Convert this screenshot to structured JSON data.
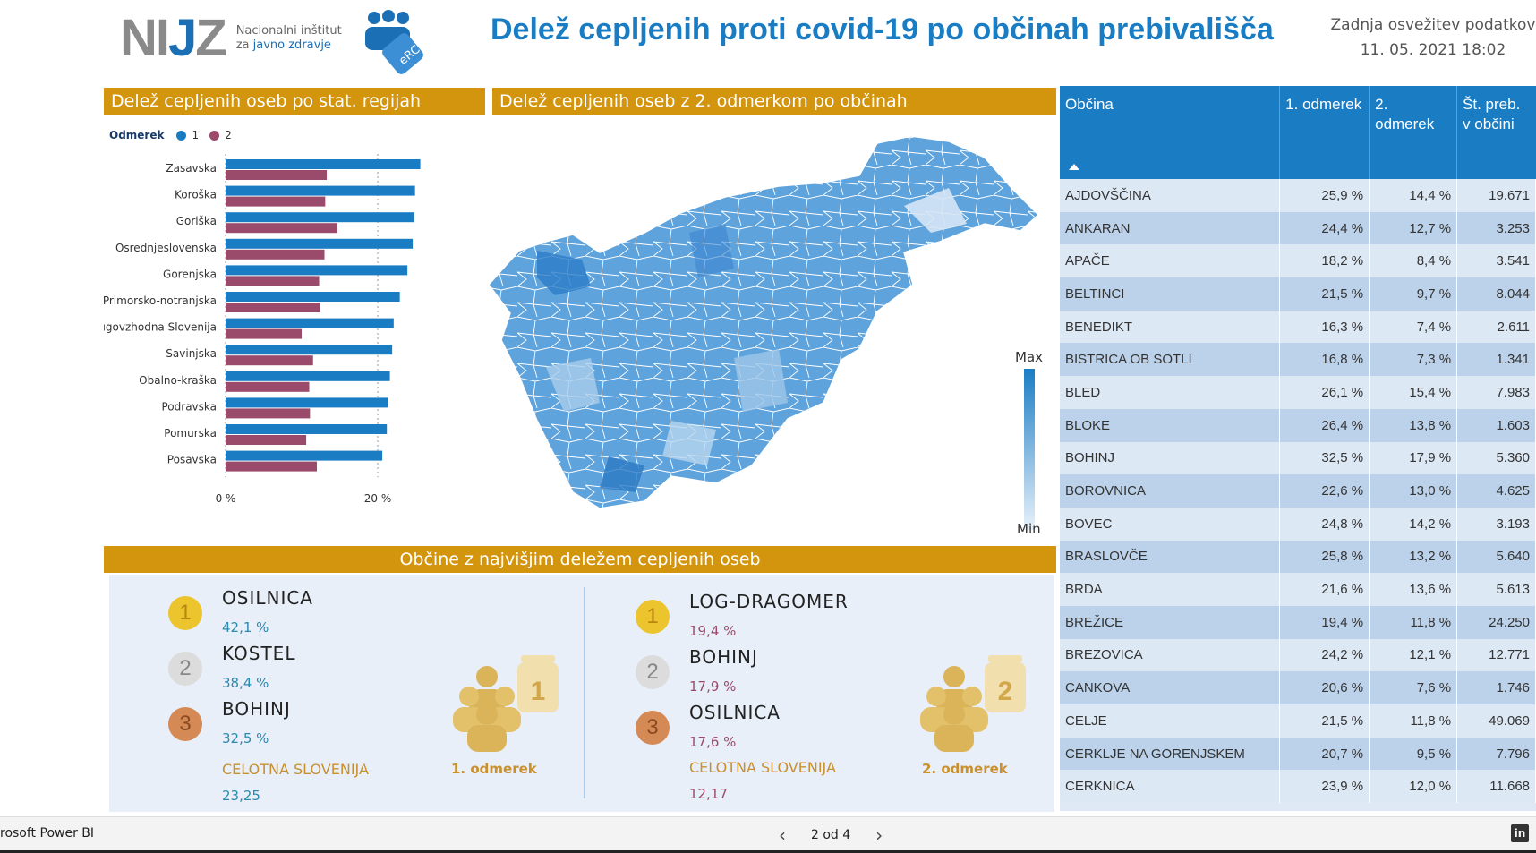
{
  "header": {
    "logo_text": "NIJZ",
    "logo_sub_line1": "Nacionalni inštitut",
    "logo_sub_line2a": "za ",
    "logo_sub_line2b": "javno zdravje",
    "erco_label": "eRCO",
    "title": "Delež cepljenih proti covid-19 po občinah prebivališča",
    "refresh_label": "Zadnja osvežitev podatkov",
    "refresh_date": "11. 05. 2021 18:02"
  },
  "regions_panel": {
    "title": "Delež cepljenih oseb po stat. regijah",
    "legend_title": "Odmerek",
    "legend_1": "1",
    "legend_2": "2"
  },
  "map_panel": {
    "title": "Delež cepljenih oseb z 2. odmerkom po občinah",
    "scale_max": "Max",
    "scale_min": "Min"
  },
  "chart_data": {
    "type": "bar",
    "orientation": "horizontal",
    "categories": [
      "Zasavska",
      "Koroška",
      "Goriška",
      "Osrednjeslovenska",
      "Gorenjska",
      "Primorsko-notranjska",
      "Jugovzhodna Slovenija",
      "Savinjska",
      "Obalno-kraška",
      "Podravska",
      "Pomurska",
      "Posavska"
    ],
    "series": [
      {
        "name": "1",
        "color": "#1a7dc4",
        "values": [
          25.6,
          24.9,
          24.8,
          24.6,
          23.9,
          22.9,
          22.1,
          21.9,
          21.6,
          21.4,
          21.2,
          20.6
        ]
      },
      {
        "name": "2",
        "color": "#9a4a6a",
        "values": [
          13.3,
          13.1,
          14.7,
          13.0,
          12.3,
          12.4,
          10.0,
          11.5,
          11.0,
          11.1,
          10.6,
          12.0
        ]
      }
    ],
    "xlim": [
      0,
      30
    ],
    "x_ticks": [
      "0 %",
      "20 %"
    ],
    "grid": true
  },
  "ranking": {
    "title": "Občine z najvišjim deležem cepljenih oseb",
    "dose1": {
      "items": [
        {
          "rank": "1",
          "name": "OSILNICA",
          "value": "42,1 %"
        },
        {
          "rank": "2",
          "name": "KOSTEL",
          "value": "38,4 %"
        },
        {
          "rank": "3",
          "name": "BOHINJ",
          "value": "32,5 %"
        }
      ],
      "total_label": "CELOTNA SLOVENIJA",
      "total_value": "23,25",
      "icon_number": "1",
      "icon_caption": "1. odmerek"
    },
    "dose2": {
      "items": [
        {
          "rank": "1",
          "name": "LOG-DRAGOMER",
          "value": "19,4 %"
        },
        {
          "rank": "2",
          "name": "BOHINJ",
          "value": "17,9 %"
        },
        {
          "rank": "3",
          "name": "OSILNICA",
          "value": "17,6 %"
        }
      ],
      "total_label": "CELOTNA SLOVENIJA",
      "total_value": "12,17",
      "icon_number": "2",
      "icon_caption": "2. odmerek"
    }
  },
  "table": {
    "columns": [
      "Občina",
      "1. odmerek",
      "2. odmerek",
      "Št. preb. v občini"
    ],
    "rows": [
      [
        "AJDOVŠČINA",
        "25,9 %",
        "14,4 %",
        "19.671"
      ],
      [
        "ANKARAN",
        "24,4 %",
        "12,7 %",
        "3.253"
      ],
      [
        "APAČE",
        "18,2 %",
        "8,4 %",
        "3.541"
      ],
      [
        "BELTINCI",
        "21,5 %",
        "9,7 %",
        "8.044"
      ],
      [
        "BENEDIKT",
        "16,3 %",
        "7,4 %",
        "2.611"
      ],
      [
        "BISTRICA OB SOTLI",
        "16,8 %",
        "7,3 %",
        "1.341"
      ],
      [
        "BLED",
        "26,1 %",
        "15,4 %",
        "7.983"
      ],
      [
        "BLOKE",
        "26,4 %",
        "13,8 %",
        "1.603"
      ],
      [
        "BOHINJ",
        "32,5 %",
        "17,9 %",
        "5.360"
      ],
      [
        "BOROVNICA",
        "22,6 %",
        "13,0 %",
        "4.625"
      ],
      [
        "BOVEC",
        "24,8 %",
        "14,2 %",
        "3.193"
      ],
      [
        "BRASLOVČE",
        "25,8 %",
        "13,2 %",
        "5.640"
      ],
      [
        "BRDA",
        "21,6 %",
        "13,6 %",
        "5.613"
      ],
      [
        "BREŽICE",
        "19,4 %",
        "11,8 %",
        "24.250"
      ],
      [
        "BREZOVICA",
        "24,2 %",
        "12,1 %",
        "12.771"
      ],
      [
        "CANKOVA",
        "20,6 %",
        "7,6 %",
        "1.746"
      ],
      [
        "CELJE",
        "21,5 %",
        "11,8 %",
        "49.069"
      ],
      [
        "CERKLJE NA GORENJSKEM",
        "20,7 %",
        "9,5 %",
        "7.796"
      ],
      [
        "CERKNICA",
        "23,9 %",
        "12,0 %",
        "11.668"
      ]
    ]
  },
  "footer": {
    "brand": "rosoft Power BI",
    "page": "2 od 4",
    "prev": "‹",
    "next": "›",
    "linkedin": "in"
  }
}
